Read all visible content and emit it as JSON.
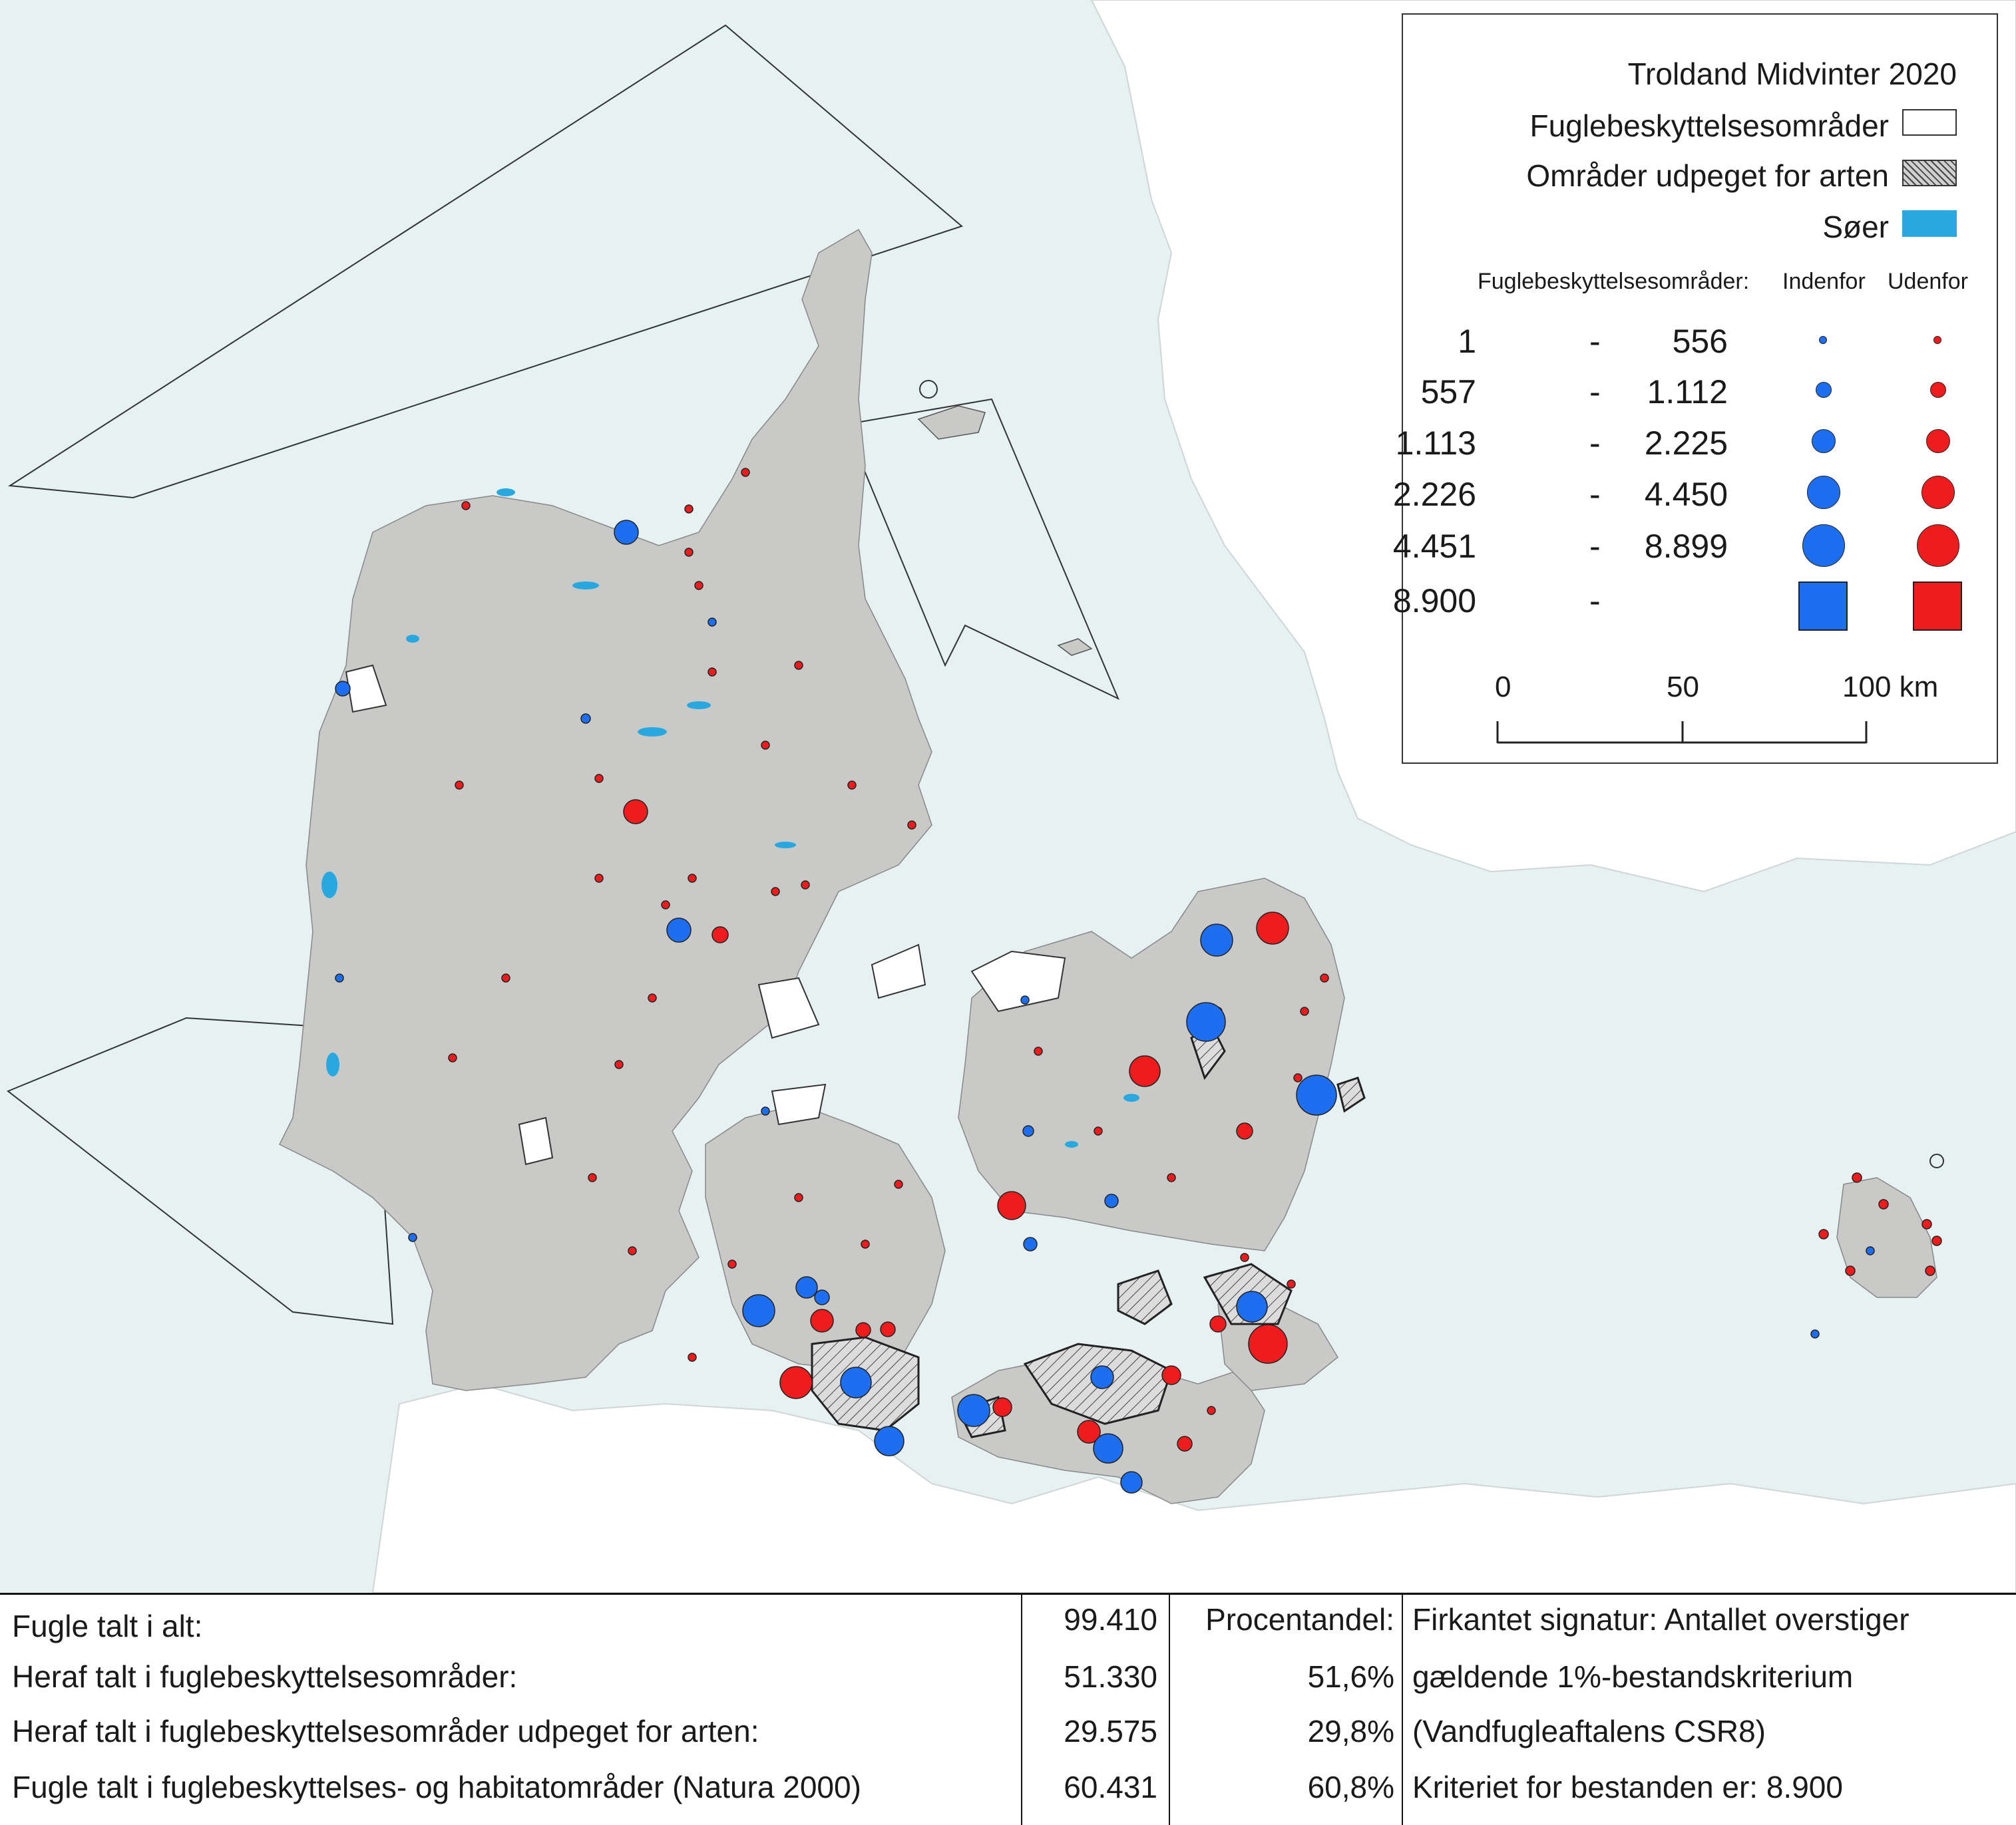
{
  "legend": {
    "title": "Troldand Midvinter 2020",
    "protected_areas_label": "Fuglebeskyttelsesområder",
    "designated_areas_label": "Områder udpeget for arten",
    "lakes_label": "Søer",
    "size_header": "Fuglebeskyttelsesområder:",
    "inside_header": "Indenfor",
    "outside_header": "Udenfor",
    "classes": [
      {
        "from": "1",
        "sep": "-",
        "to": "556"
      },
      {
        "from": "557",
        "sep": "-",
        "to": "1.112"
      },
      {
        "from": "1.113",
        "sep": "-",
        "to": "2.225"
      },
      {
        "from": "2.226",
        "sep": "-",
        "to": "4.450"
      },
      {
        "from": "4.451",
        "sep": "-",
        "to": "8.899"
      },
      {
        "from": "8.900",
        "sep": "-",
        "to": ""
      }
    ],
    "scale": {
      "labels": [
        "0",
        "50",
        "100 km"
      ]
    },
    "colors": {
      "inside": "#1e6ff0",
      "outside": "#ee1c1c",
      "lakes": "#29a8e0",
      "land": "#c9cac8",
      "sea": "#e6f1f2",
      "foreign_land": "#ffffff"
    }
  },
  "stats": {
    "rows": [
      {
        "label": "Fugle talt i alt:",
        "value": "99.410",
        "percent_label": "Procentandel:",
        "note": "Firkantet signatur: Antallet overstiger"
      },
      {
        "label": "Heraf talt i fuglebeskyttelsesområder:",
        "value": "51.330",
        "percent": "51,6%",
        "note": "gældende 1%-bestandskriterium"
      },
      {
        "label": "Heraf talt i fuglebeskyttelsesområder udpeget for arten:",
        "value": "29.575",
        "percent": "29,8%",
        "note": "(Vandfugleaftalens CSR8)"
      },
      {
        "label": "Fugle talt i fuglebeskyttelses- og habitatområder (Natura 2000)",
        "value": "60.431",
        "percent": "60,8%",
        "note": "Kriteriet for bestanden er: 8.900"
      }
    ]
  }
}
